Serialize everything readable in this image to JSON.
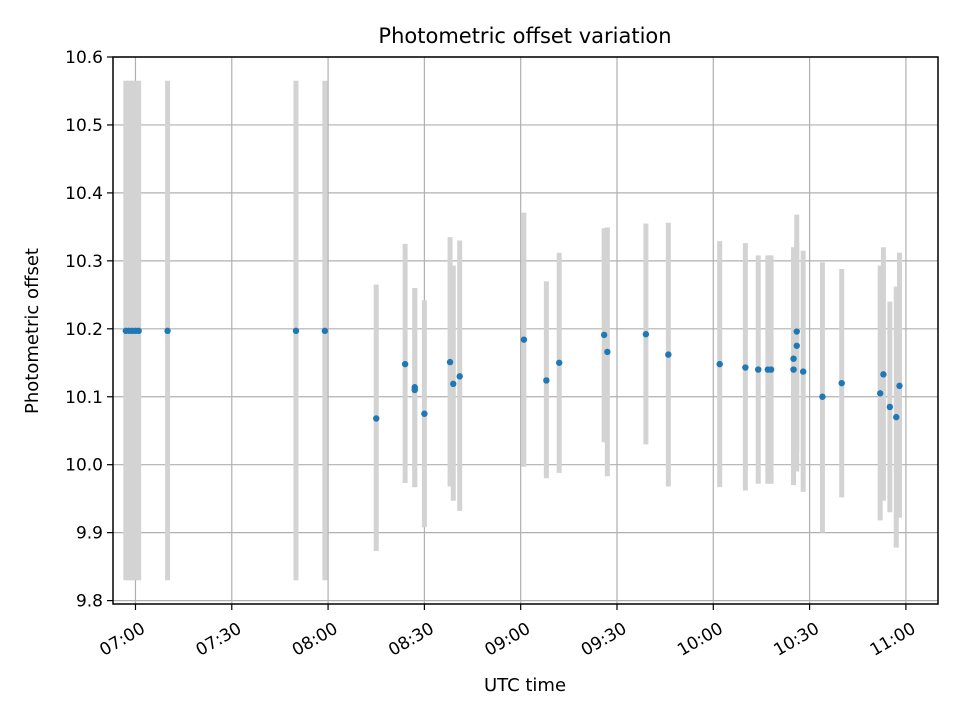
{
  "chart_data": {
    "type": "scatter",
    "title": "Photometric offset variation",
    "xlabel": "UTC time",
    "ylabel": "Photometric offset",
    "xlim": [
      "06:53",
      "11:10"
    ],
    "ylim": [
      9.795,
      10.6
    ],
    "x_ticks": [
      "07:00",
      "07:30",
      "08:00",
      "08:30",
      "09:00",
      "09:30",
      "10:00",
      "10:30",
      "11:00"
    ],
    "y_ticks": [
      "9.8",
      "9.9",
      "10.0",
      "10.1",
      "10.2",
      "10.3",
      "10.4",
      "10.5",
      "10.6"
    ],
    "grid": true,
    "point_color": "#1f77b4",
    "errorbar_color": "#d3d3d3",
    "series": [
      {
        "points": [
          {
            "t": "06:57",
            "y": 10.197,
            "lo": 9.83,
            "hi": 10.565
          },
          {
            "t": "06:58",
            "y": 10.197,
            "lo": 9.83,
            "hi": 10.565
          },
          {
            "t": "06:59",
            "y": 10.197,
            "lo": 9.83,
            "hi": 10.565
          },
          {
            "t": "07:00",
            "y": 10.197,
            "lo": 9.83,
            "hi": 10.565
          },
          {
            "t": "07:01",
            "y": 10.197,
            "lo": 9.83,
            "hi": 10.565
          },
          {
            "t": "07:10",
            "y": 10.197,
            "lo": 9.83,
            "hi": 10.565
          },
          {
            "t": "07:50",
            "y": 10.197,
            "lo": 9.83,
            "hi": 10.565
          },
          {
            "t": "07:59",
            "y": 10.197,
            "lo": 9.83,
            "hi": 10.565
          },
          {
            "t": "08:15",
            "y": 10.068,
            "lo": 9.873,
            "hi": 10.265
          },
          {
            "t": "08:24",
            "y": 10.148,
            "lo": 9.973,
            "hi": 10.325
          },
          {
            "t": "08:27",
            "y": 10.114,
            "lo": 9.967,
            "hi": 10.26
          },
          {
            "t": "08:27",
            "y": 10.11,
            "lo": 9.967,
            "hi": 10.26
          },
          {
            "t": "08:30",
            "y": 10.075,
            "lo": 9.908,
            "hi": 10.242
          },
          {
            "t": "08:38",
            "y": 10.151,
            "lo": 9.968,
            "hi": 10.335
          },
          {
            "t": "08:39",
            "y": 10.119,
            "lo": 9.947,
            "hi": 10.293
          },
          {
            "t": "08:41",
            "y": 10.13,
            "lo": 9.932,
            "hi": 10.33
          },
          {
            "t": "09:01",
            "y": 10.184,
            "lo": 9.997,
            "hi": 10.371
          },
          {
            "t": "09:08",
            "y": 10.124,
            "lo": 9.98,
            "hi": 10.27
          },
          {
            "t": "09:12",
            "y": 10.15,
            "lo": 9.988,
            "hi": 10.312
          },
          {
            "t": "09:26",
            "y": 10.191,
            "lo": 10.033,
            "hi": 10.348
          },
          {
            "t": "09:27",
            "y": 10.166,
            "lo": 9.983,
            "hi": 10.349
          },
          {
            "t": "09:39",
            "y": 10.192,
            "lo": 10.03,
            "hi": 10.355
          },
          {
            "t": "09:46",
            "y": 10.162,
            "lo": 9.968,
            "hi": 10.356
          },
          {
            "t": "10:02",
            "y": 10.148,
            "lo": 9.967,
            "hi": 10.329
          },
          {
            "t": "10:10",
            "y": 10.143,
            "lo": 9.962,
            "hi": 10.326
          },
          {
            "t": "10:14",
            "y": 10.14,
            "lo": 9.972,
            "hi": 10.308
          },
          {
            "t": "10:17",
            "y": 10.14,
            "lo": 9.972,
            "hi": 10.308
          },
          {
            "t": "10:18",
            "y": 10.14,
            "lo": 9.972,
            "hi": 10.308
          },
          {
            "t": "10:25",
            "y": 10.14,
            "lo": 9.97,
            "hi": 10.31
          },
          {
            "t": "10:25",
            "y": 10.156,
            "lo": 9.98,
            "hi": 10.32
          },
          {
            "t": "10:26",
            "y": 10.175,
            "lo": 9.99,
            "hi": 10.33
          },
          {
            "t": "10:26",
            "y": 10.196,
            "lo": 10.02,
            "hi": 10.368
          },
          {
            "t": "10:28",
            "y": 10.137,
            "lo": 9.96,
            "hi": 10.315
          },
          {
            "t": "10:34",
            "y": 10.1,
            "lo": 9.9,
            "hi": 10.298
          },
          {
            "t": "10:40",
            "y": 10.12,
            "lo": 9.952,
            "hi": 10.288
          },
          {
            "t": "10:52",
            "y": 10.105,
            "lo": 9.918,
            "hi": 10.293
          },
          {
            "t": "10:53",
            "y": 10.133,
            "lo": 9.947,
            "hi": 10.32
          },
          {
            "t": "10:55",
            "y": 10.085,
            "lo": 9.93,
            "hi": 10.24
          },
          {
            "t": "10:57",
            "y": 10.07,
            "lo": 9.878,
            "hi": 10.262
          },
          {
            "t": "10:58",
            "y": 10.116,
            "lo": 9.922,
            "hi": 10.312
          }
        ]
      }
    ]
  }
}
